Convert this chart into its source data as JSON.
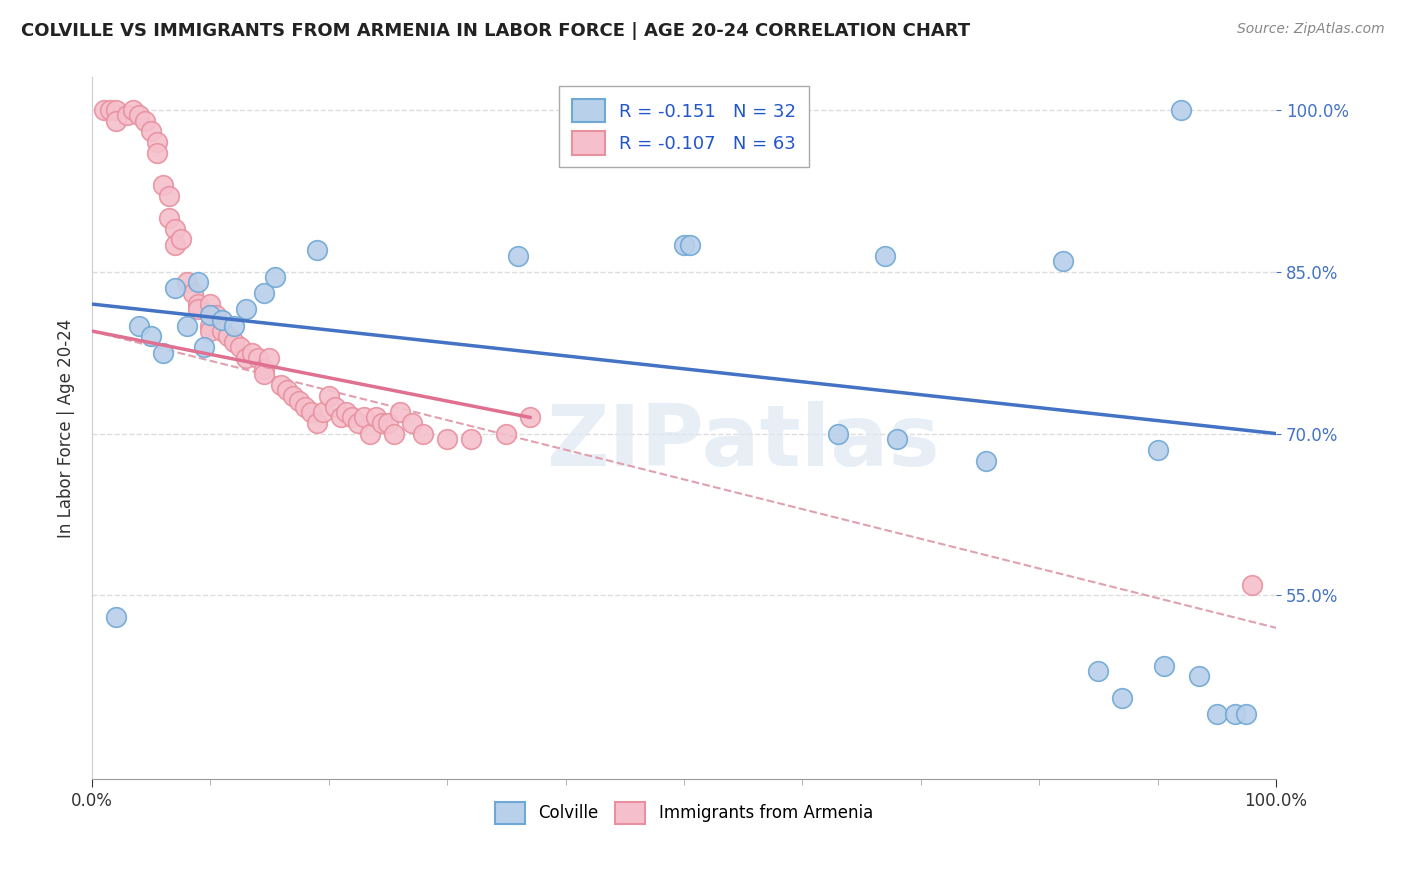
{
  "title": "COLVILLE VS IMMIGRANTS FROM ARMENIA IN LABOR FORCE | AGE 20-24 CORRELATION CHART",
  "source": "Source: ZipAtlas.com",
  "ylabel": "In Labor Force | Age 20-24",
  "xlim": [
    0.0,
    1.0
  ],
  "ylim": [
    0.38,
    1.03
  ],
  "y_tick_values": [
    1.0,
    0.85,
    0.7,
    0.55
  ],
  "colville_color": "#b8d0ea",
  "colville_edge": "#6fa8d4",
  "armenia_color": "#f5c0cb",
  "armenia_edge": "#e8909f",
  "colville_scatter_x": [
    0.02,
    0.04,
    0.05,
    0.06,
    0.07,
    0.08,
    0.09,
    0.095,
    0.1,
    0.11,
    0.12,
    0.13,
    0.145,
    0.155,
    0.19,
    0.36,
    0.5,
    0.505,
    0.63,
    0.67,
    0.68,
    0.755,
    0.82,
    0.85,
    0.87,
    0.9,
    0.905,
    0.92,
    0.935,
    0.95,
    0.965,
    0.975
  ],
  "colville_scatter_y": [
    0.53,
    0.8,
    0.79,
    0.775,
    0.835,
    0.8,
    0.84,
    0.78,
    0.81,
    0.805,
    0.8,
    0.815,
    0.83,
    0.845,
    0.87,
    0.865,
    0.875,
    0.875,
    0.7,
    0.865,
    0.695,
    0.675,
    0.86,
    0.48,
    0.455,
    0.685,
    0.485,
    1.0,
    0.475,
    0.44,
    0.44,
    0.44
  ],
  "armenia_scatter_x": [
    0.01,
    0.015,
    0.02,
    0.02,
    0.03,
    0.035,
    0.04,
    0.045,
    0.05,
    0.055,
    0.055,
    0.06,
    0.065,
    0.065,
    0.07,
    0.07,
    0.075,
    0.08,
    0.085,
    0.09,
    0.09,
    0.1,
    0.1,
    0.1,
    0.105,
    0.11,
    0.115,
    0.12,
    0.125,
    0.13,
    0.135,
    0.14,
    0.145,
    0.145,
    0.15,
    0.16,
    0.165,
    0.17,
    0.175,
    0.18,
    0.185,
    0.19,
    0.195,
    0.2,
    0.205,
    0.21,
    0.215,
    0.22,
    0.225,
    0.23,
    0.235,
    0.24,
    0.245,
    0.25,
    0.255,
    0.26,
    0.27,
    0.28,
    0.3,
    0.32,
    0.35,
    0.37,
    0.98
  ],
  "armenia_scatter_y": [
    1.0,
    1.0,
    1.0,
    0.99,
    0.995,
    1.0,
    0.995,
    0.99,
    0.98,
    0.97,
    0.96,
    0.93,
    0.92,
    0.9,
    0.89,
    0.875,
    0.88,
    0.84,
    0.83,
    0.82,
    0.815,
    0.82,
    0.8,
    0.795,
    0.81,
    0.795,
    0.79,
    0.785,
    0.78,
    0.77,
    0.775,
    0.77,
    0.76,
    0.755,
    0.77,
    0.745,
    0.74,
    0.735,
    0.73,
    0.725,
    0.72,
    0.71,
    0.72,
    0.735,
    0.725,
    0.715,
    0.72,
    0.715,
    0.71,
    0.715,
    0.7,
    0.715,
    0.71,
    0.71,
    0.7,
    0.72,
    0.71,
    0.7,
    0.695,
    0.695,
    0.7,
    0.715,
    0.56
  ],
  "colville_trend": [
    0.0,
    1.0,
    0.82,
    0.7
  ],
  "armenia_trend": [
    0.0,
    0.37,
    0.795,
    0.715
  ],
  "dashed_trend": [
    0.0,
    1.0,
    0.795,
    0.52
  ],
  "watermark": "ZIPatlas",
  "background_color": "#ffffff",
  "grid_color": "#dddddd",
  "legend_label1": "R = -0.151   N = 32",
  "legend_label2": "R = -0.107   N = 63",
  "bottom_legend": [
    "Colville",
    "Immigrants from Armenia"
  ]
}
